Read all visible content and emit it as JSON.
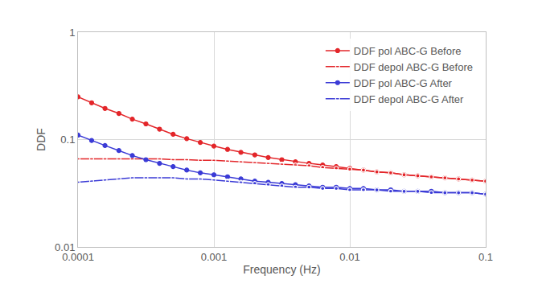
{
  "chart_data": {
    "type": "line",
    "x_label": "Frequency (Hz)",
    "y_label": "DDF",
    "log": true,
    "grid": true,
    "legend": "upper right",
    "xlim": [
      0.0001,
      0.1
    ],
    "ylim": [
      0.01,
      1
    ],
    "xticks": [
      0.0001,
      0.001,
      0.01,
      0.1
    ],
    "yticks": [
      0.01,
      0.1,
      1
    ],
    "x": [
      0.0001,
      0.000126,
      0.000158,
      0.0002,
      0.000251,
      0.000316,
      0.000398,
      0.000501,
      0.000631,
      0.000794,
      0.001,
      0.00126,
      0.00158,
      0.002,
      0.00251,
      0.00316,
      0.00398,
      0.00501,
      0.00631,
      0.00794,
      0.01,
      0.0126,
      0.0158,
      0.02,
      0.0251,
      0.0316,
      0.0398,
      0.0501,
      0.0631,
      0.0794,
      0.1
    ],
    "series": [
      {
        "name": "DDF pol ABC-G Before",
        "color": "#e3262a",
        "marker": "filled",
        "line_style": "solid",
        "values": [
          0.25,
          0.22,
          0.195,
          0.175,
          0.155,
          0.14,
          0.125,
          0.112,
          0.102,
          0.094,
          0.087,
          0.081,
          0.076,
          0.072,
          0.068,
          0.065,
          0.062,
          0.06,
          0.058,
          0.056,
          0.054,
          0.052,
          0.05,
          0.049,
          0.047,
          0.046,
          0.045,
          0.044,
          0.043,
          0.042,
          0.041
        ]
      },
      {
        "name": "DDF depol ABC-G Before",
        "color": "#e3262a",
        "marker": "open",
        "line_style": "solid",
        "values": [
          0.066,
          0.066,
          0.066,
          0.066,
          0.066,
          0.066,
          0.066,
          0.065,
          0.065,
          0.064,
          0.064,
          0.063,
          0.062,
          0.061,
          0.06,
          0.059,
          0.058,
          0.057,
          0.055,
          0.054,
          0.053,
          0.052,
          0.05,
          0.049,
          0.047,
          0.046,
          0.045,
          0.044,
          0.043,
          0.042,
          0.041
        ]
      },
      {
        "name": "DDF pol ABC-G After",
        "color": "#3b3bd6",
        "marker": "filled",
        "line_style": "solid",
        "values": [
          0.11,
          0.098,
          0.088,
          0.079,
          0.071,
          0.065,
          0.06,
          0.056,
          0.052,
          0.049,
          0.047,
          0.045,
          0.043,
          0.041,
          0.04,
          0.039,
          0.038,
          0.037,
          0.036,
          0.036,
          0.035,
          0.035,
          0.034,
          0.034,
          0.033,
          0.033,
          0.033,
          0.032,
          0.032,
          0.032,
          0.031
        ]
      },
      {
        "name": "DDF depol ABC-G After",
        "color": "#3b3bd6",
        "marker": "open",
        "line_style": "solid",
        "values": [
          0.04,
          0.041,
          0.042,
          0.043,
          0.044,
          0.044,
          0.044,
          0.044,
          0.043,
          0.043,
          0.042,
          0.041,
          0.04,
          0.039,
          0.038,
          0.037,
          0.036,
          0.036,
          0.035,
          0.035,
          0.034,
          0.034,
          0.034,
          0.033,
          0.033,
          0.033,
          0.032,
          0.032,
          0.032,
          0.032,
          0.031
        ]
      }
    ]
  }
}
